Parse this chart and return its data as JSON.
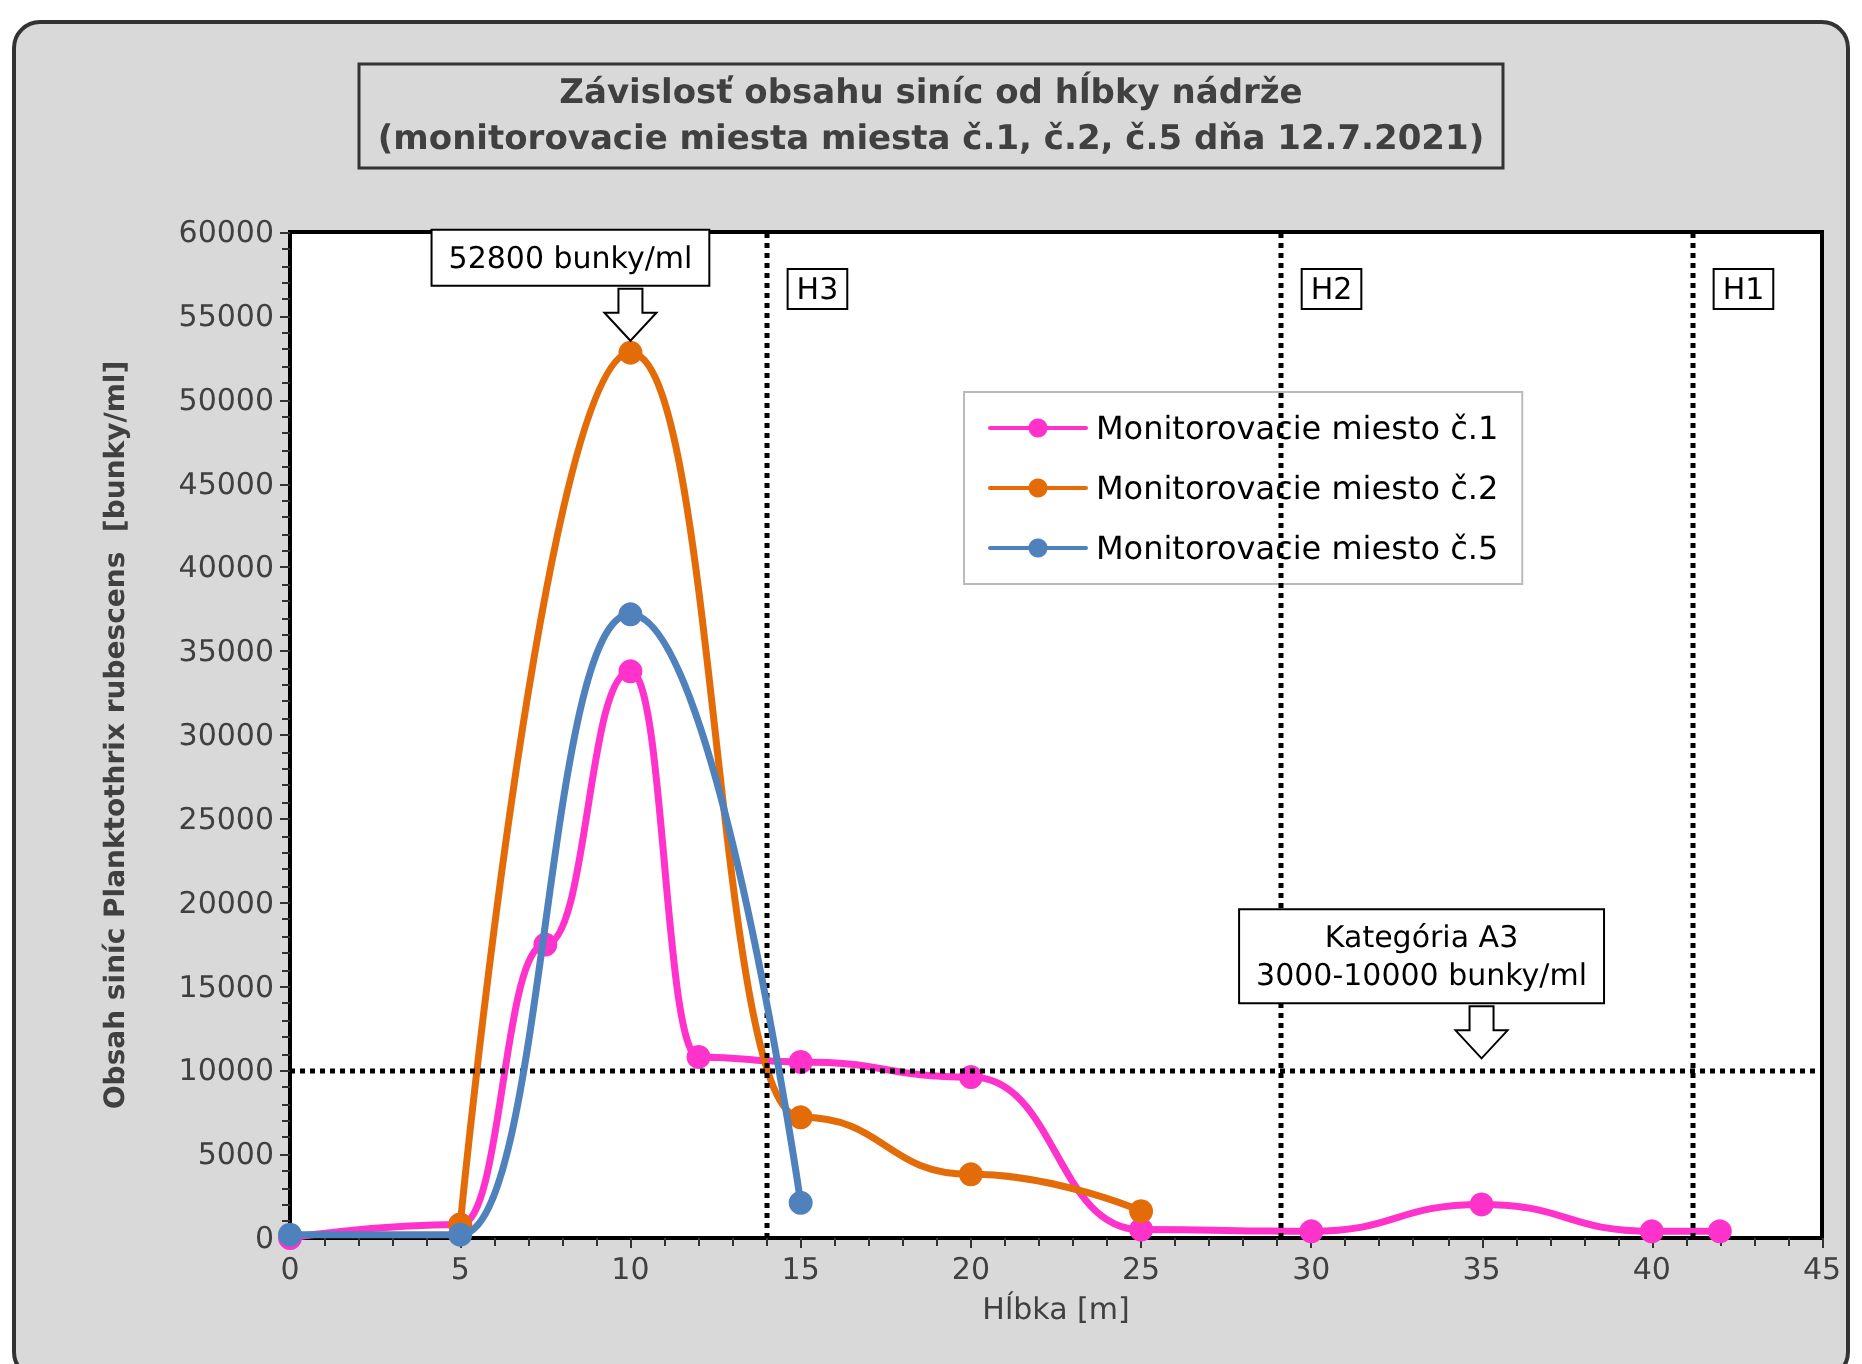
{
  "chart_data": {
    "type": "line",
    "title": "Závislosť obsahu siníc od hĺbky nádrže",
    "subtitle": "(monitorovacie miesta miesta č.1, č.2, č.5 dňa 12.7.2021)",
    "xlabel": "Hĺbka [m]",
    "ylabel": "Obsah siníc Planktothrix rubescens  [bunky/ml]",
    "series": [
      {
        "name": "Monitorovacie miesto č.1",
        "color": "#ff33cc",
        "x": [
          0,
          5,
          7.5,
          10,
          12,
          15,
          20,
          25,
          30,
          35,
          40,
          42
        ],
        "values": [
          0,
          800,
          17500,
          33800,
          10800,
          10500,
          9600,
          500,
          400,
          2000,
          400,
          400
        ]
      },
      {
        "name": "Monitorovacie miesto č.2",
        "color": "#e36c09",
        "x": [
          5,
          10,
          15,
          20,
          25
        ],
        "values": [
          800,
          52800,
          7200,
          3800,
          1600
        ]
      },
      {
        "name": "Monitorovacie miesto č.5",
        "color": "#4f81bd",
        "x": [
          0,
          5,
          10,
          15
        ],
        "values": [
          200,
          200,
          37200,
          2100
        ]
      }
    ],
    "xlim": [
      0,
      45
    ],
    "xticks": [
      0,
      5,
      10,
      15,
      20,
      25,
      30,
      35,
      40,
      45
    ],
    "ylim": [
      0,
      60000
    ],
    "yticks": [
      0,
      5000,
      10000,
      15000,
      20000,
      25000,
      30000,
      35000,
      40000,
      45000,
      50000,
      55000,
      60000
    ],
    "ref_lines": [
      {
        "axis": "x",
        "value": 14,
        "label": "H3",
        "line_style": "dotted"
      },
      {
        "axis": "x",
        "value": 29.1,
        "label": "H2",
        "line_style": "dotted"
      },
      {
        "axis": "x",
        "value": 41.2,
        "label": "H1",
        "line_style": "dotted"
      },
      {
        "axis": "y",
        "value": 10000,
        "line_style": "dotted"
      }
    ],
    "annotations": [
      {
        "text": "52800 bunky/ml",
        "x": 10,
        "y": 52800
      },
      {
        "text": "Kategória A3\n3000-10000 bunky/ml",
        "x": 35,
        "y": 10000
      }
    ],
    "marker": "circle",
    "line_style": "solid",
    "grid": false,
    "legend": "top right"
  }
}
